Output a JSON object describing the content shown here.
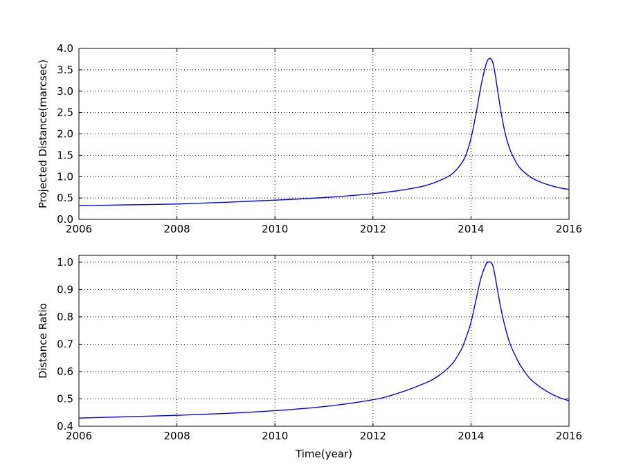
{
  "chart_data": [
    {
      "type": "line",
      "title": "",
      "xlabel": "",
      "ylabel": "Projected Distance(marcsec)",
      "xlim": [
        2006,
        2016
      ],
      "ylim": [
        0.0,
        4.0
      ],
      "xticks": [
        "2006",
        "2008",
        "2010",
        "2012",
        "2014",
        "2016"
      ],
      "yticks": [
        "0.0",
        "0.5",
        "1.0",
        "1.5",
        "2.0",
        "2.5",
        "3.0",
        "3.5",
        "4.0"
      ],
      "grid": true,
      "line_color": "#0000ff",
      "series": [
        {
          "x": [
            2006.0,
            2007.0,
            2008.0,
            2009.0,
            2010.0,
            2011.0,
            2012.0,
            2012.5,
            2013.0,
            2013.3,
            2013.6,
            2013.8,
            2013.9,
            2014.0,
            2014.1,
            2014.2,
            2014.3,
            2014.35,
            2014.4,
            2014.45,
            2014.5,
            2014.6,
            2014.7,
            2014.8,
            2014.9,
            2015.0,
            2015.2,
            2015.4,
            2015.6,
            2015.8,
            2016.0
          ],
          "y": [
            0.32,
            0.34,
            0.36,
            0.4,
            0.45,
            0.51,
            0.6,
            0.67,
            0.77,
            0.88,
            1.05,
            1.3,
            1.52,
            1.9,
            2.45,
            3.1,
            3.6,
            3.74,
            3.76,
            3.65,
            3.35,
            2.6,
            2.0,
            1.62,
            1.38,
            1.2,
            1.0,
            0.88,
            0.8,
            0.74,
            0.7
          ]
        }
      ]
    },
    {
      "type": "line",
      "title": "",
      "xlabel": "Time(year)",
      "ylabel": "Distance Ratio",
      "xlim": [
        2006,
        2016
      ],
      "ylim": [
        0.4,
        1.025
      ],
      "xticks": [
        "2006",
        "2008",
        "2010",
        "2012",
        "2014",
        "2016"
      ],
      "yticks": [
        "0.4",
        "0.5",
        "0.6",
        "0.7",
        "0.8",
        "0.9",
        "1.0"
      ],
      "grid": true,
      "line_color": "#0000ff",
      "series": [
        {
          "x": [
            2006.0,
            2007.0,
            2008.0,
            2009.0,
            2010.0,
            2011.0,
            2012.0,
            2012.5,
            2013.0,
            2013.3,
            2013.6,
            2013.8,
            2013.9,
            2014.0,
            2014.1,
            2014.2,
            2014.3,
            2014.35,
            2014.4,
            2014.45,
            2014.5,
            2014.6,
            2014.7,
            2014.8,
            2014.9,
            2015.0,
            2015.2,
            2015.4,
            2015.6,
            2015.8,
            2016.0
          ],
          "y": [
            0.43,
            0.435,
            0.44,
            0.447,
            0.457,
            0.472,
            0.497,
            0.52,
            0.553,
            0.58,
            0.625,
            0.68,
            0.725,
            0.78,
            0.86,
            0.94,
            0.99,
            1.0,
            1.0,
            0.985,
            0.94,
            0.84,
            0.76,
            0.7,
            0.66,
            0.625,
            0.575,
            0.545,
            0.522,
            0.505,
            0.493
          ]
        }
      ]
    }
  ]
}
